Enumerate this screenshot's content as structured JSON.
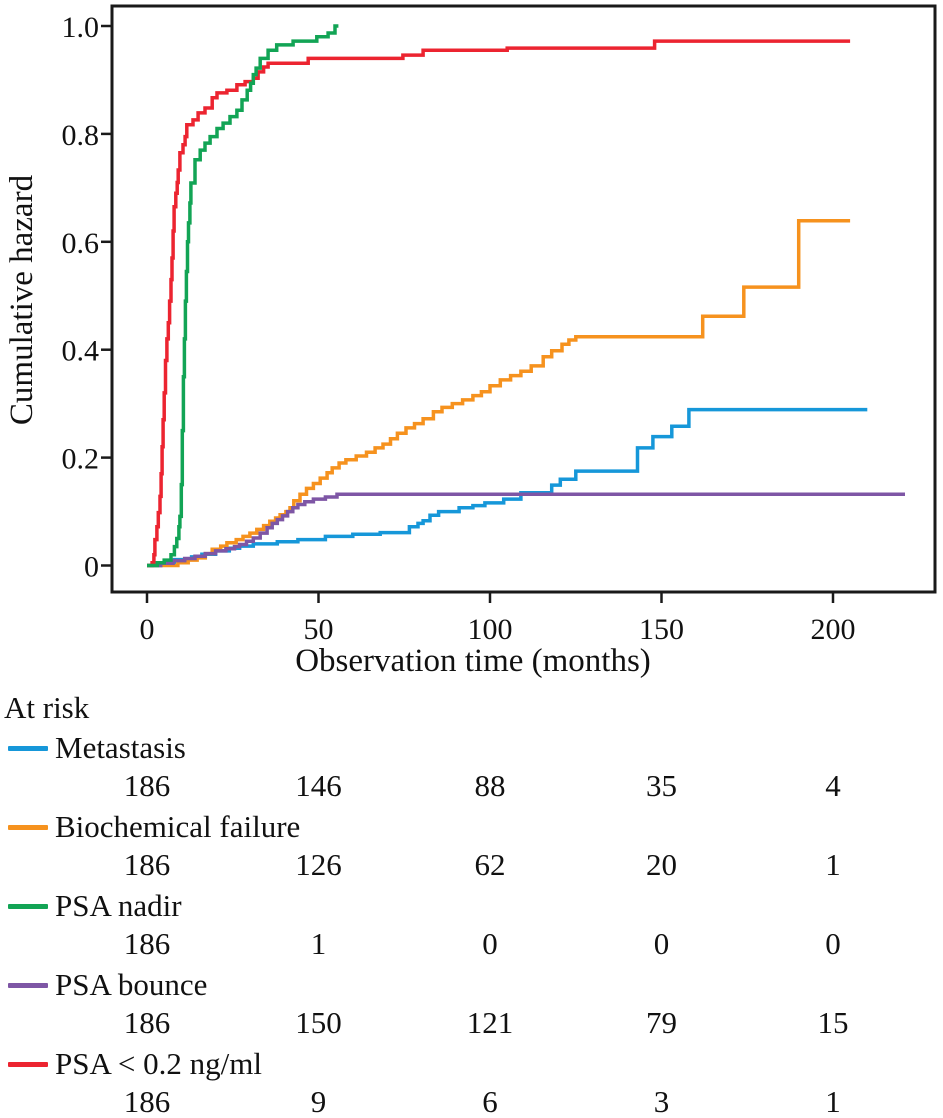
{
  "figure": {
    "background": "#ffffff",
    "axis_color": "#1a1a1a",
    "text_color": "#111111"
  },
  "chart_data": {
    "type": "line",
    "subtype": "cumulative-hazard-step",
    "title": "",
    "xlabel": "Observation time (months)",
    "ylabel": "Cumulative hazard",
    "xlim": [
      -10,
      230
    ],
    "ylim": [
      -0.05,
      1.04
    ],
    "x_ticks": [
      0,
      50,
      100,
      150,
      200
    ],
    "y_ticks": [
      0,
      0.2,
      0.4,
      0.6,
      0.8,
      1.0
    ],
    "y_tick_labels": [
      "0",
      "0.2",
      "0.4",
      "0.6",
      "0.8",
      "1.0"
    ],
    "grid": false,
    "legend_position": "below-chart-with-at-risk-table",
    "series": [
      {
        "key": "metastasis",
        "name": "Metastasis",
        "color": "#1697D9",
        "points": [
          [
            0,
            0
          ],
          [
            4,
            0.005
          ],
          [
            8,
            0.011
          ],
          [
            13,
            0.016
          ],
          [
            16,
            0.021
          ],
          [
            20,
            0.027
          ],
          [
            24,
            0.032
          ],
          [
            27,
            0.036
          ],
          [
            31,
            0.04
          ],
          [
            38,
            0.044
          ],
          [
            44,
            0.048
          ],
          [
            52,
            0.054
          ],
          [
            60,
            0.058
          ],
          [
            68,
            0.061
          ],
          [
            76.5,
            0.072
          ],
          [
            79,
            0.078
          ],
          [
            80.5,
            0.083
          ],
          [
            82.5,
            0.093
          ],
          [
            85,
            0.1
          ],
          [
            91,
            0.107
          ],
          [
            95,
            0.111
          ],
          [
            98.5,
            0.116
          ],
          [
            104,
            0.123
          ],
          [
            109,
            0.135
          ],
          [
            118,
            0.149
          ],
          [
            120.5,
            0.16
          ],
          [
            125,
            0.175
          ],
          [
            143,
            0.218
          ],
          [
            147.5,
            0.239
          ],
          [
            153,
            0.258
          ],
          [
            158,
            0.289
          ],
          [
            210,
            0.289
          ]
        ]
      },
      {
        "key": "biochemical_failure",
        "name": "Biochemical failure",
        "color": "#F6921E",
        "points": [
          [
            0,
            0
          ],
          [
            9,
            0.005
          ],
          [
            12,
            0.01
          ],
          [
            14.6,
            0.014
          ],
          [
            17,
            0.022
          ],
          [
            19,
            0.03
          ],
          [
            21.5,
            0.036
          ],
          [
            23.3,
            0.042
          ],
          [
            26,
            0.048
          ],
          [
            28,
            0.054
          ],
          [
            30,
            0.06
          ],
          [
            32,
            0.067
          ],
          [
            34,
            0.074
          ],
          [
            35.8,
            0.082
          ],
          [
            37.5,
            0.088
          ],
          [
            38.8,
            0.094
          ],
          [
            40.5,
            0.1
          ],
          [
            41.7,
            0.107
          ],
          [
            42.8,
            0.12
          ],
          [
            44.6,
            0.132
          ],
          [
            46.5,
            0.143
          ],
          [
            48.5,
            0.152
          ],
          [
            50.5,
            0.162
          ],
          [
            52.5,
            0.172
          ],
          [
            54,
            0.181
          ],
          [
            56,
            0.19
          ],
          [
            58,
            0.196
          ],
          [
            61,
            0.203
          ],
          [
            64,
            0.21
          ],
          [
            66.5,
            0.218
          ],
          [
            68.8,
            0.225
          ],
          [
            71,
            0.235
          ],
          [
            73,
            0.245
          ],
          [
            75.5,
            0.255
          ],
          [
            78,
            0.263
          ],
          [
            80.5,
            0.272
          ],
          [
            83.5,
            0.285
          ],
          [
            86,
            0.293
          ],
          [
            89,
            0.3
          ],
          [
            92,
            0.307
          ],
          [
            95,
            0.315
          ],
          [
            97.5,
            0.322
          ],
          [
            100,
            0.333
          ],
          [
            103,
            0.344
          ],
          [
            106,
            0.352
          ],
          [
            109,
            0.36
          ],
          [
            112,
            0.37
          ],
          [
            115.5,
            0.387
          ],
          [
            118,
            0.398
          ],
          [
            121,
            0.41
          ],
          [
            123,
            0.418
          ],
          [
            125,
            0.424
          ],
          [
            162,
            0.462
          ],
          [
            174,
            0.516
          ],
          [
            190,
            0.639
          ],
          [
            205,
            0.639
          ]
        ]
      },
      {
        "key": "psa_nadir",
        "name": "PSA nadir",
        "color": "#12A455",
        "points": [
          [
            0,
            0
          ],
          [
            3,
            0.005
          ],
          [
            5,
            0.01
          ],
          [
            7,
            0.02
          ],
          [
            8,
            0.035
          ],
          [
            8.7,
            0.05
          ],
          [
            9.3,
            0.072
          ],
          [
            9.6,
            0.091
          ],
          [
            10,
            0.15
          ],
          [
            10.3,
            0.25
          ],
          [
            10.6,
            0.35
          ],
          [
            10.9,
            0.42
          ],
          [
            11.2,
            0.49
          ],
          [
            11.5,
            0.545
          ],
          [
            11.8,
            0.6
          ],
          [
            12.1,
            0.635
          ],
          [
            12.5,
            0.672
          ],
          [
            12.8,
            0.709
          ],
          [
            14,
            0.752
          ],
          [
            15.5,
            0.77
          ],
          [
            16.9,
            0.783
          ],
          [
            18.4,
            0.795
          ],
          [
            20.4,
            0.81
          ],
          [
            22.2,
            0.82
          ],
          [
            24.2,
            0.832
          ],
          [
            26.2,
            0.844
          ],
          [
            27.7,
            0.863
          ],
          [
            29.2,
            0.881
          ],
          [
            30.2,
            0.894
          ],
          [
            31,
            0.91
          ],
          [
            31.8,
            0.922
          ],
          [
            33,
            0.94
          ],
          [
            35.3,
            0.955
          ],
          [
            37.8,
            0.965
          ],
          [
            42.6,
            0.972
          ],
          [
            49.5,
            0.98
          ],
          [
            52.8,
            0.987
          ],
          [
            54.8,
            1.0
          ],
          [
            55.8,
            1.0
          ]
        ]
      },
      {
        "key": "psa_bounce",
        "name": "PSA bounce",
        "color": "#7E56A5",
        "points": [
          [
            0,
            0
          ],
          [
            4,
            0.004
          ],
          [
            7.6,
            0.009
          ],
          [
            11,
            0.013
          ],
          [
            14,
            0.017
          ],
          [
            17,
            0.022
          ],
          [
            20,
            0.027
          ],
          [
            23,
            0.031
          ],
          [
            25.5,
            0.035
          ],
          [
            27,
            0.039
          ],
          [
            29,
            0.045
          ],
          [
            31,
            0.051
          ],
          [
            33,
            0.06
          ],
          [
            35,
            0.07
          ],
          [
            36.5,
            0.078
          ],
          [
            38,
            0.085
          ],
          [
            39.5,
            0.092
          ],
          [
            41,
            0.1
          ],
          [
            42.5,
            0.107
          ],
          [
            44,
            0.113
          ],
          [
            46,
            0.118
          ],
          [
            48.5,
            0.123
          ],
          [
            52,
            0.127
          ],
          [
            55.4,
            0.132
          ],
          [
            221,
            0.132
          ]
        ]
      },
      {
        "key": "psa_lt_02",
        "name": "PSA < 0.2 ng/ml",
        "color": "#EC2430",
        "points": [
          [
            0,
            0
          ],
          [
            1.5,
            0.005
          ],
          [
            2,
            0.02
          ],
          [
            2.3,
            0.048
          ],
          [
            2.9,
            0.072
          ],
          [
            3.3,
            0.098
          ],
          [
            3.8,
            0.128
          ],
          [
            4.1,
            0.17
          ],
          [
            4.4,
            0.22
          ],
          [
            4.7,
            0.27
          ],
          [
            5,
            0.32
          ],
          [
            5.4,
            0.38
          ],
          [
            5.8,
            0.42
          ],
          [
            6.2,
            0.45
          ],
          [
            6.6,
            0.49
          ],
          [
            7,
            0.53
          ],
          [
            7.3,
            0.57
          ],
          [
            7.6,
            0.62
          ],
          [
            7.9,
            0.665
          ],
          [
            8.4,
            0.69
          ],
          [
            8.8,
            0.71
          ],
          [
            9.1,
            0.733
          ],
          [
            9.6,
            0.765
          ],
          [
            10.5,
            0.78
          ],
          [
            11.1,
            0.795
          ],
          [
            11.6,
            0.817
          ],
          [
            13.4,
            0.826
          ],
          [
            14.9,
            0.839
          ],
          [
            16.9,
            0.848
          ],
          [
            19,
            0.867
          ],
          [
            20.4,
            0.876
          ],
          [
            23.3,
            0.881
          ],
          [
            26.2,
            0.891
          ],
          [
            28.6,
            0.897
          ],
          [
            31,
            0.903
          ],
          [
            32.4,
            0.915
          ],
          [
            34,
            0.924
          ],
          [
            35.3,
            0.931
          ],
          [
            47,
            0.94
          ],
          [
            74.6,
            0.946
          ],
          [
            80.5,
            0.955
          ],
          [
            105,
            0.959
          ],
          [
            148,
            0.972
          ],
          [
            205,
            0.972
          ]
        ]
      }
    ]
  },
  "at_risk": {
    "header": "At risk",
    "time_points": [
      0,
      50,
      100,
      150,
      200
    ],
    "rows": [
      {
        "label": "Metastasis",
        "series": "metastasis",
        "counts": [
          "186",
          "146",
          "88",
          "35",
          "4"
        ]
      },
      {
        "label": "Biochemical failure",
        "series": "biochemical_failure",
        "counts": [
          "186",
          "126",
          "62",
          "20",
          "1"
        ]
      },
      {
        "label": "PSA nadir",
        "series": "psa_nadir",
        "counts": [
          "186",
          "1",
          "0",
          "0",
          "0"
        ]
      },
      {
        "label": "PSA bounce",
        "series": "psa_bounce",
        "counts": [
          "186",
          "150",
          "121",
          "79",
          "15"
        ]
      },
      {
        "label": "PSA < 0.2 ng/ml",
        "series": "psa_lt_02",
        "counts": [
          "186",
          "9",
          "6",
          "3",
          "1"
        ]
      }
    ]
  }
}
